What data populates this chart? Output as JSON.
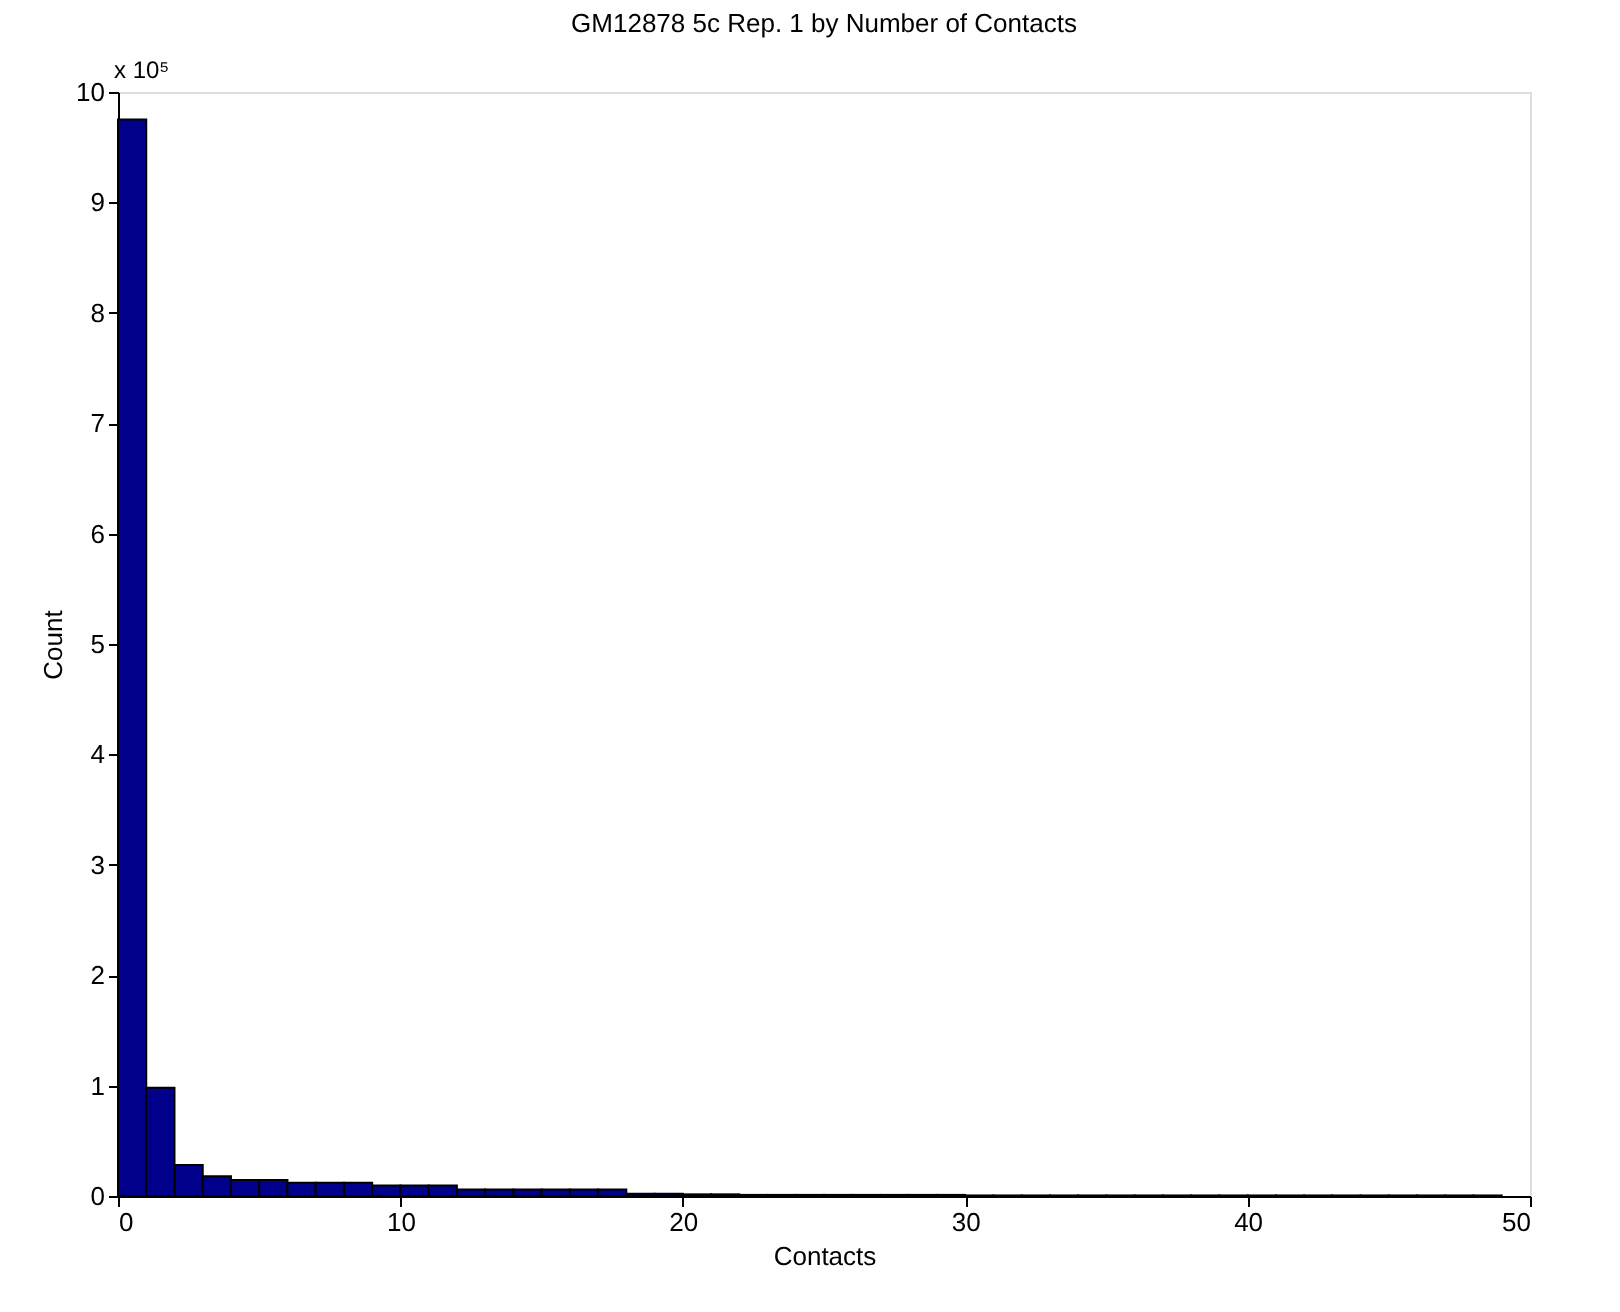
{
  "chart_data": {
    "type": "histogram",
    "title": "GM12878 5c Rep. 1 by Number of Contacts",
    "xlabel": "Contacts",
    "ylabel": "Count",
    "annotations": [
      "x 10⁵"
    ],
    "bins": [
      0,
      1,
      2,
      3,
      4,
      5,
      6,
      7,
      8,
      9,
      10,
      11,
      12,
      13,
      14,
      15,
      16,
      17,
      18,
      19,
      20,
      21,
      22,
      23,
      24,
      25,
      26,
      27,
      28,
      29,
      30,
      31,
      32,
      33,
      34,
      35,
      36,
      37,
      38,
      39,
      40,
      41,
      42,
      43,
      44,
      45,
      46,
      47,
      48,
      49
    ],
    "values": [
      9.75,
      0.98,
      0.28,
      0.18,
      0.145,
      0.145,
      0.12,
      0.12,
      0.12,
      0.095,
      0.095,
      0.095,
      0.06,
      0.06,
      0.06,
      0.06,
      0.06,
      0.06,
      0.02,
      0.02,
      0.015,
      0.015,
      0.01,
      0.01,
      0.01,
      0.01,
      0.01,
      0.01,
      0.01,
      0.01,
      0.005,
      0.005,
      0.005,
      0.005,
      0.005,
      0.005,
      0.005,
      0.005,
      0.005,
      0.005,
      0.005,
      0.005,
      0.005,
      0.005,
      0.005,
      0.005,
      0.005,
      0.005,
      0.005
    ],
    "color": "#00008b",
    "xlim": [
      0,
      50
    ],
    "ylim": [
      0,
      10
    ],
    "xticks": [
      0,
      10,
      20,
      30,
      40,
      50
    ],
    "yticks": [
      0,
      1,
      2,
      3,
      4,
      5,
      6,
      7,
      8,
      9,
      10
    ],
    "grid": false
  }
}
